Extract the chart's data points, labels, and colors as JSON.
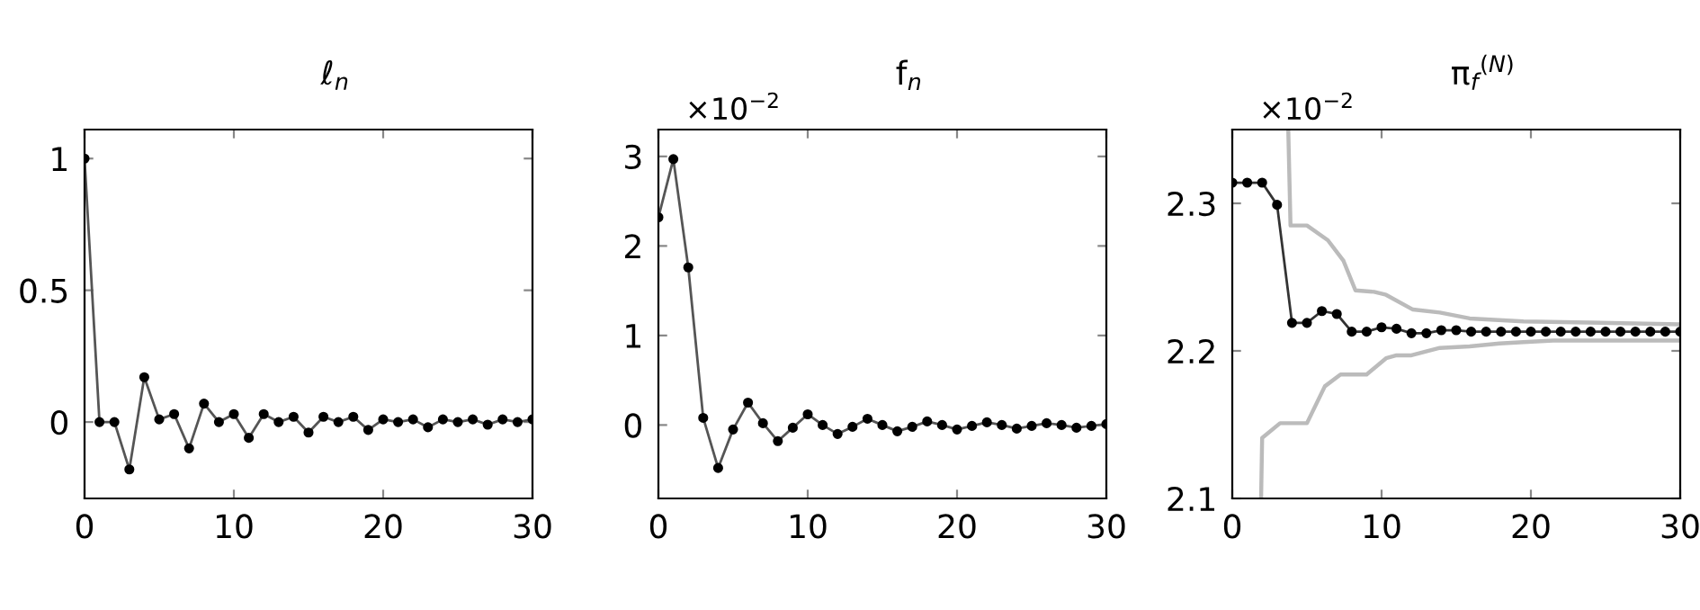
{
  "chart_data": [
    {
      "type": "line",
      "title": "ℓ$_{n}$",
      "xlim": [
        0,
        30
      ],
      "xticks": [
        0,
        10,
        20,
        30
      ],
      "ylim": [
        -0.29,
        1.11
      ],
      "yticks": [
        0,
        0.5,
        1
      ],
      "marker": "circle",
      "line_style": "solid",
      "grid": false,
      "legend": false,
      "x": [
        0,
        1,
        2,
        3,
        4,
        5,
        6,
        7,
        8,
        9,
        10,
        11,
        12,
        13,
        14,
        15,
        16,
        17,
        18,
        19,
        20,
        21,
        22,
        23,
        24,
        25,
        26,
        27,
        28,
        29,
        30
      ],
      "series": [
        {
          "color": "#555555",
          "values": [
            1,
            0,
            0,
            -0.18,
            0.17,
            0.01,
            0.03,
            -0.1,
            0.07,
            0,
            0.03,
            -0.06,
            0.03,
            0,
            0.02,
            -0.04,
            0.02,
            0,
            0.02,
            -0.03,
            0.01,
            0,
            0.01,
            -0.02,
            0.01,
            0,
            0.01,
            -0.01,
            0.01,
            0,
            0.01
          ]
        }
      ]
    },
    {
      "type": "line",
      "title": "f$_{n}$",
      "annotations": [
        "×10$^{−2}$"
      ],
      "xlim": [
        0,
        30
      ],
      "xticks": [
        0,
        10,
        20,
        30
      ],
      "ylim": [
        -0.82,
        3.3
      ],
      "yticks": [
        0,
        1,
        2,
        3
      ],
      "marker": "circle",
      "line_style": "solid",
      "grid": false,
      "legend": false,
      "x": [
        0,
        1,
        2,
        3,
        4,
        5,
        6,
        7,
        8,
        9,
        10,
        11,
        12,
        13,
        14,
        15,
        16,
        17,
        18,
        19,
        20,
        21,
        22,
        23,
        24,
        25,
        26,
        27,
        28,
        29,
        30
      ],
      "series": [
        {
          "color": "#555555",
          "values": [
            2.32,
            2.97,
            1.76,
            0.08,
            -0.48,
            -0.05,
            0.25,
            0.02,
            -0.18,
            -0.03,
            0.12,
            0,
            -0.1,
            -0.02,
            0.07,
            0,
            -0.07,
            -0.02,
            0.04,
            0,
            -0.05,
            -0.01,
            0.03,
            0,
            -0.04,
            -0.01,
            0.02,
            0,
            -0.03,
            -0.01,
            0.01
          ]
        }
      ]
    },
    {
      "type": "line",
      "title": "π$_{f}$$^{(N)}$",
      "annotations": [
        "×10$^{−2}$"
      ],
      "xlim": [
        0,
        30
      ],
      "xticks": [
        0,
        10,
        20,
        30
      ],
      "ylim": [
        2.1,
        2.35
      ],
      "yticks": [
        2.1,
        2.2,
        2.3
      ],
      "grid": false,
      "legend": false,
      "line_style": "solid",
      "series": [
        {
          "color": "#bbbbbb",
          "marker": "none",
          "x": [
            3.75,
            3.9,
            5,
            6.4,
            7.45,
            8.25,
            9.5,
            10.3,
            12.1,
            13.9,
            15.9,
            19.5,
            30
          ],
          "values": [
            2.35,
            2.285,
            2.285,
            2.275,
            2.261,
            2.241,
            2.24,
            2.238,
            2.228,
            2.226,
            2.222,
            2.22,
            2.218
          ]
        },
        {
          "color": "#bbbbbb",
          "marker": "none",
          "x": [
            1.93,
            2,
            3.2,
            5,
            6.2,
            7.25,
            9,
            10.3,
            11,
            12,
            13.9,
            15.9,
            17.9,
            19.5,
            21.5,
            30
          ],
          "values": [
            2.1,
            2.141,
            2.151,
            2.151,
            2.176,
            2.184,
            2.184,
            2.195,
            2.197,
            2.197,
            2.202,
            2.203,
            2.205,
            2.206,
            2.207,
            2.207
          ]
        },
        {
          "color": "#333333",
          "marker": "circle",
          "x": [
            0,
            1,
            2,
            3,
            4,
            5,
            6,
            7,
            8,
            9,
            10,
            11,
            12,
            13,
            14,
            15,
            16,
            17,
            18,
            19,
            20,
            21,
            22,
            23,
            24,
            25,
            26,
            27,
            28,
            29,
            30
          ],
          "values": [
            2.314,
            2.314,
            2.314,
            2.299,
            2.219,
            2.219,
            2.227,
            2.225,
            2.213,
            2.213,
            2.216,
            2.215,
            2.212,
            2.212,
            2.214,
            2.214,
            2.213,
            2.213,
            2.213,
            2.213,
            2.213,
            2.213,
            2.213,
            2.213,
            2.213,
            2.213,
            2.213,
            2.213,
            2.213,
            2.213,
            2.213
          ]
        }
      ]
    }
  ]
}
